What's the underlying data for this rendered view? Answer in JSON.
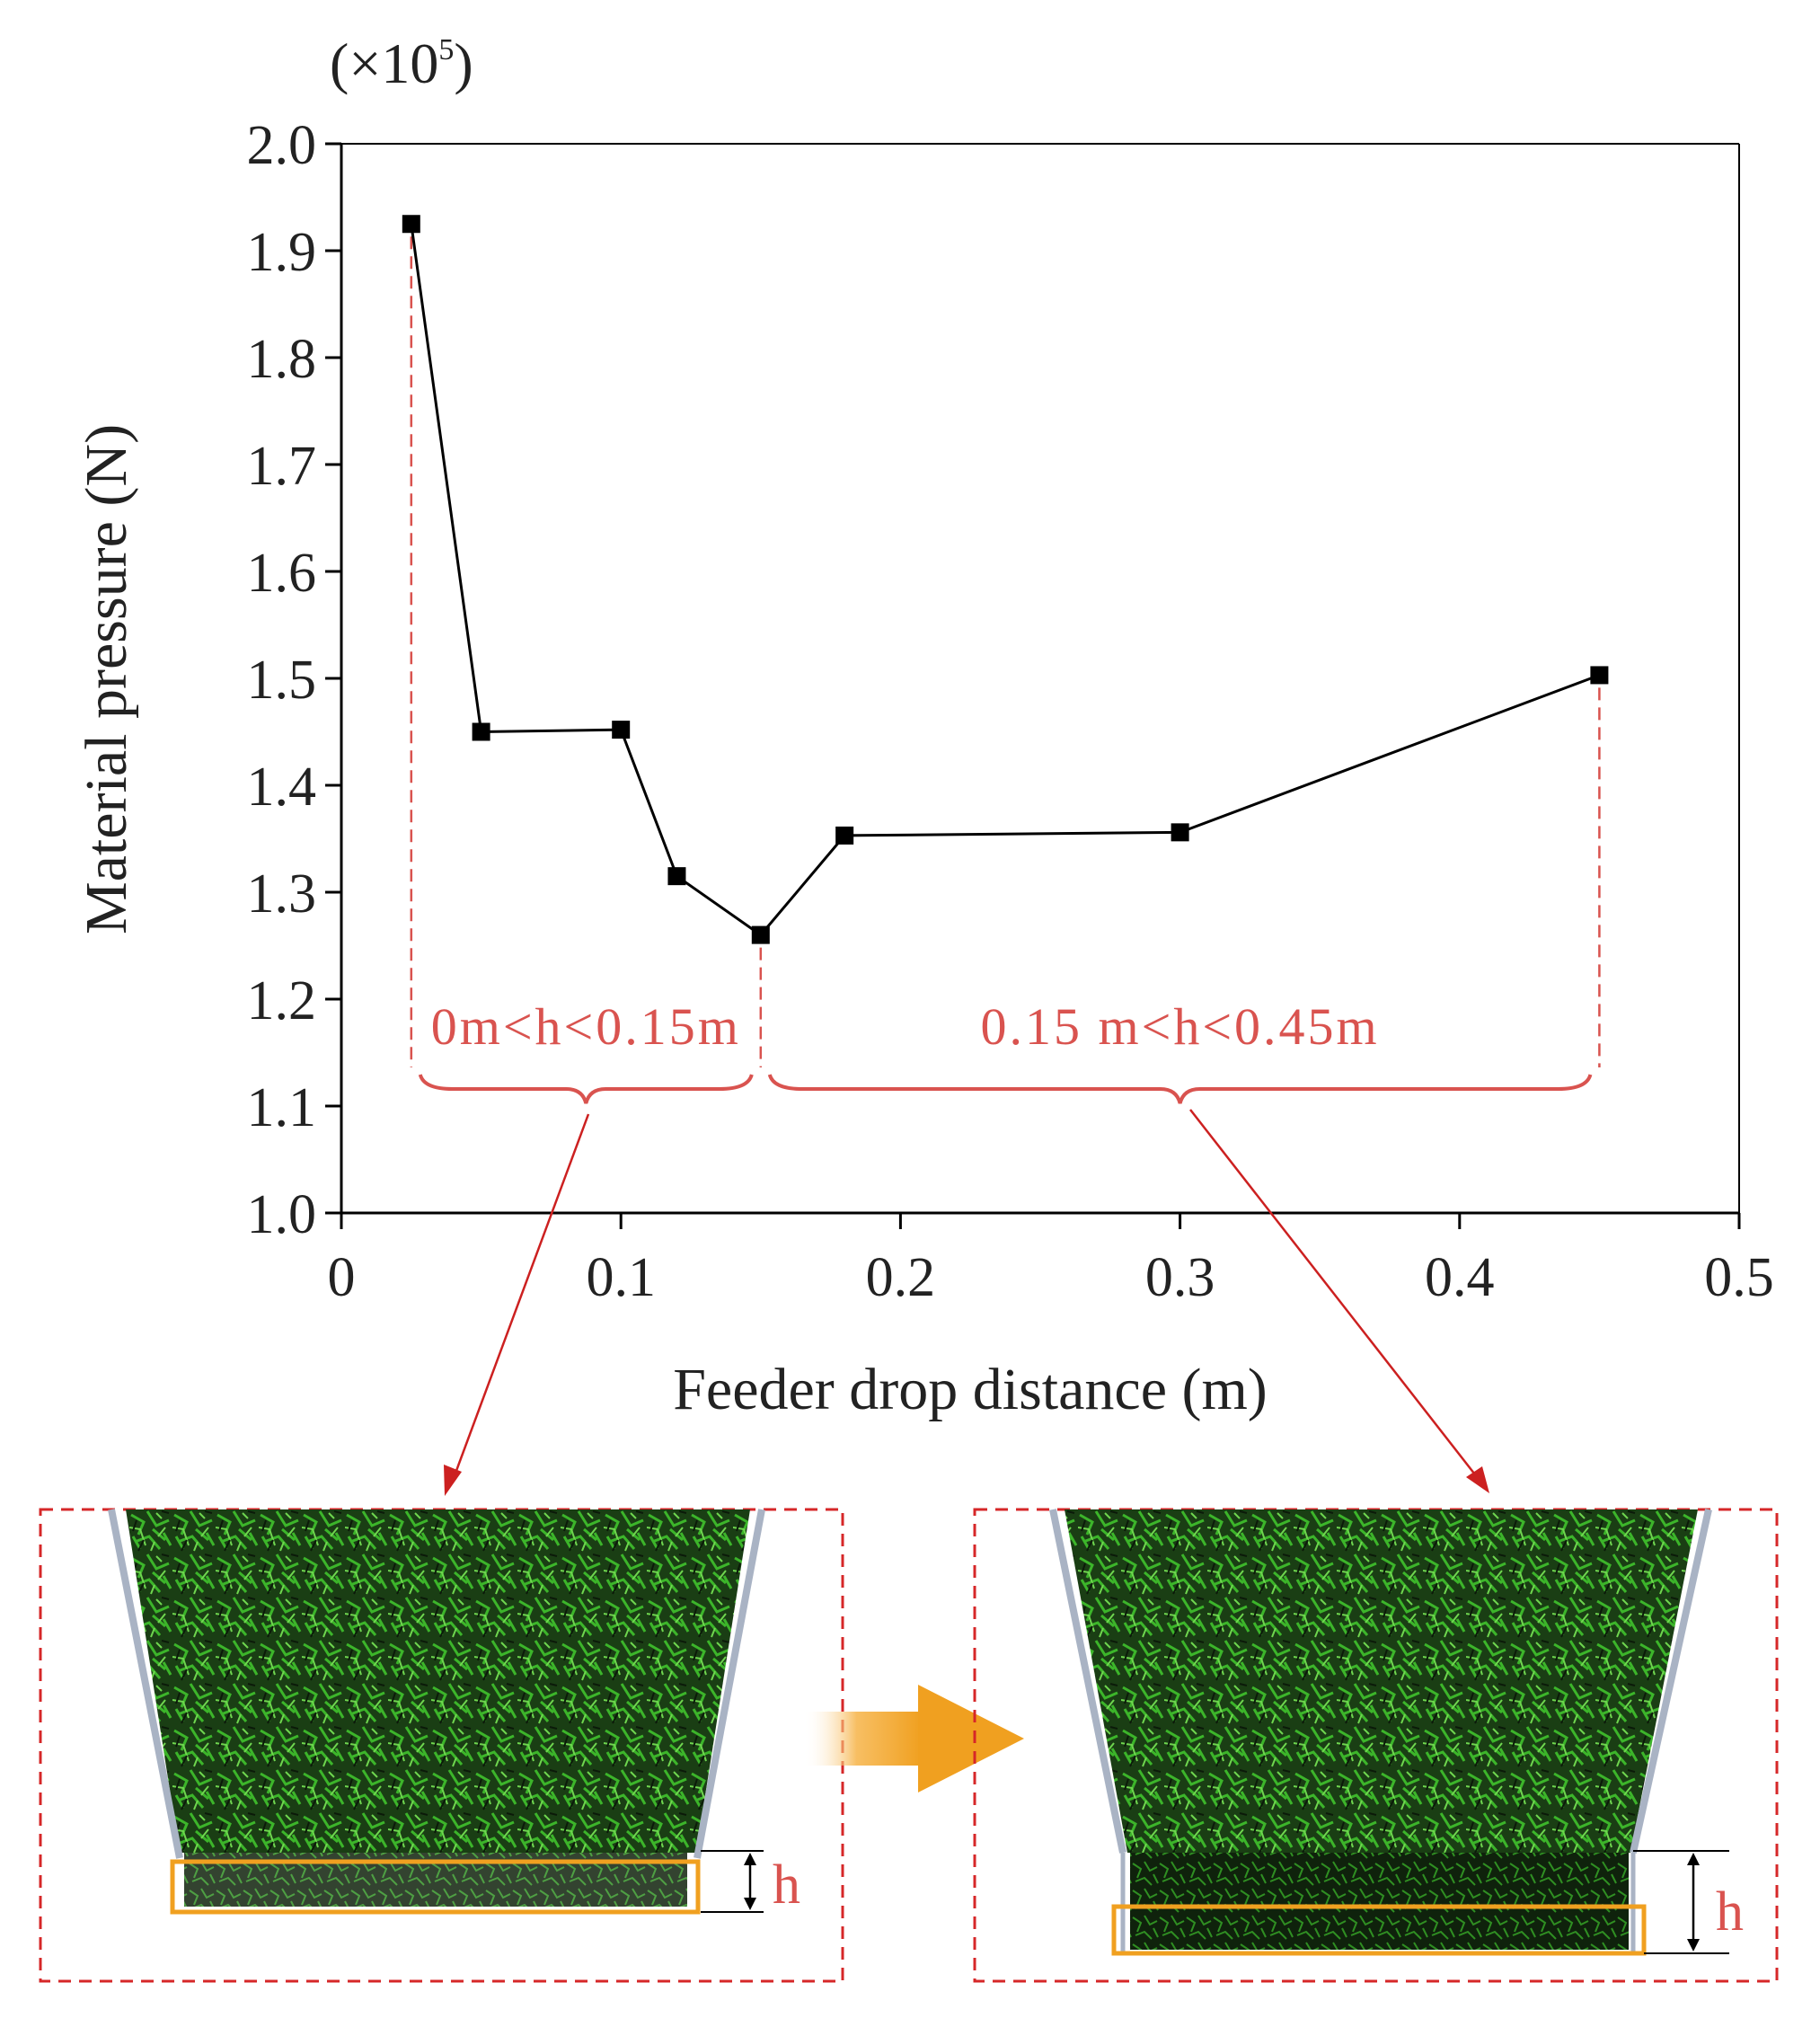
{
  "chart_data": {
    "type": "line",
    "title": "",
    "xlabel": "Feeder drop distance (m)",
    "ylabel": "Material pressure (N)",
    "y_multiplier_label": "(×10",
    "y_multiplier_exp": "5",
    "y_multiplier_close": ")",
    "xlim": [
      0,
      0.5
    ],
    "ylim": [
      1.0,
      2.0
    ],
    "x_ticks": [
      "0",
      "0.1",
      "0.2",
      "0.3",
      "0.4",
      "0.5"
    ],
    "y_ticks": [
      "1.0",
      "1.1",
      "1.2",
      "1.3",
      "1.4",
      "1.5",
      "1.6",
      "1.7",
      "1.8",
      "1.9",
      "2.0"
    ],
    "grid": false,
    "series": [
      {
        "x": [
          0.025,
          0.05,
          0.1,
          0.12,
          0.15,
          0.18,
          0.3,
          0.45
        ],
        "y": [
          1.925,
          1.45,
          1.452,
          1.315,
          1.26,
          1.353,
          1.356,
          1.503
        ],
        "marker": "square",
        "color": "#000000"
      }
    ],
    "annotations": [
      {
        "text": "0m<h<0.15m",
        "x_from": 0.025,
        "x_to": 0.15,
        "color": "#d9534f"
      },
      {
        "text": "0.15 m<h<0.45m",
        "x_from": 0.15,
        "x_to": 0.45,
        "color": "#d9534f"
      }
    ]
  },
  "panels": {
    "left_h_label": "h",
    "right_h_label": "h"
  },
  "colors": {
    "annotation": "#d9534f",
    "arrow_red": "#cc2020",
    "dashed_box": "#d62728",
    "orange": "#f0a020",
    "vegetation_dark": "#173a12",
    "vegetation_light": "#3fbf2a",
    "hopper_wall": "#a9b3c4"
  }
}
